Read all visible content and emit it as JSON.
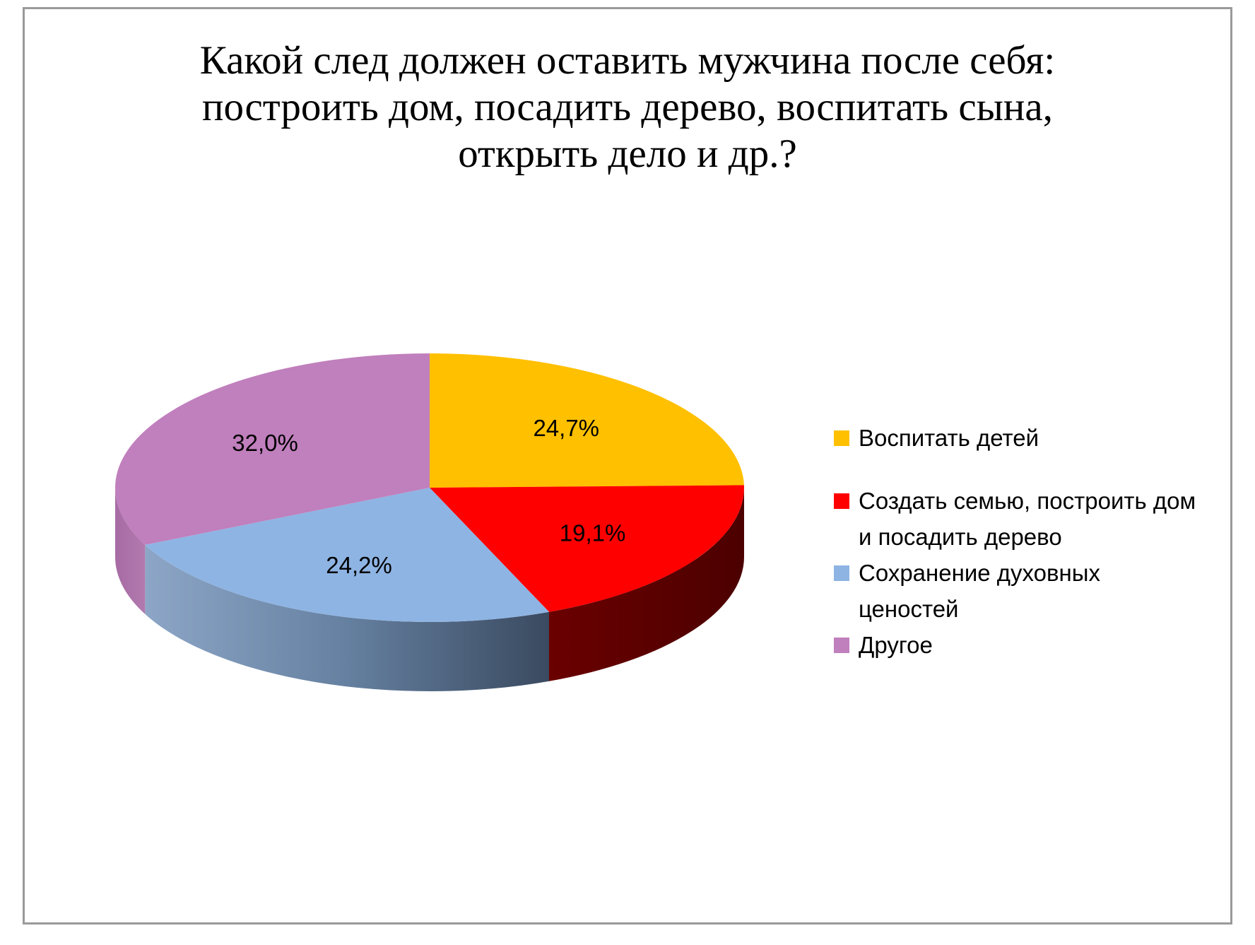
{
  "chart_data": {
    "type": "pie",
    "title": [
      "Какой след должен оставить мужчина после себя:",
      "построить дом, посадить дерево, воспитать сына,",
      "открыть дело и др.?"
    ],
    "categories": [
      "Воспитать детей",
      "Создать семью, построить дом и посадить дерево",
      "Сохранение духовных ценостей",
      "Другое"
    ],
    "values": [
      24.7,
      19.1,
      24.2,
      32.0
    ],
    "data_labels": [
      "24,7%",
      "19,1%",
      "24,2%",
      "32,0%"
    ],
    "colors": [
      "#FFC000",
      "#FF0000",
      "#8EB4E3",
      "#C07FBD"
    ],
    "side_colors": [
      "#B38600",
      "#6E0000",
      "#4A5A70",
      "#9C5F99"
    ],
    "legend_position": "right",
    "style": "3d-pie"
  }
}
